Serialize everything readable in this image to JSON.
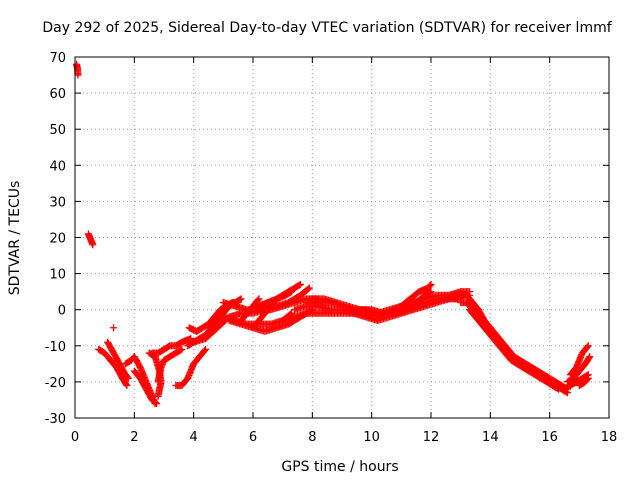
{
  "chart_data": {
    "type": "scatter",
    "title": "Day 292 of 2025, Sidereal Day-to-day VTEC variation (SDTVAR) for receiver lmmf",
    "xlabel": "GPS time / hours",
    "ylabel": "SDTVAR / TECUs",
    "xlim": [
      0,
      18
    ],
    "ylim": [
      -30,
      70
    ],
    "xticks": [
      0,
      2,
      4,
      6,
      8,
      10,
      12,
      14,
      16,
      18
    ],
    "yticks": [
      -30,
      -20,
      -10,
      0,
      10,
      20,
      30,
      40,
      50,
      60,
      70
    ],
    "grid": true,
    "marker": "+",
    "colors": {
      "series": "#ff0000",
      "grid": "#a0a0a0",
      "axis": "#000000"
    },
    "series": [
      {
        "name": "SDTVAR",
        "tracks": [
          [
            [
              0.05,
              68
            ],
            [
              0.08,
              67
            ],
            [
              0.1,
              65
            ]
          ],
          [
            [
              0.45,
              21
            ],
            [
              0.5,
              20
            ],
            [
              0.55,
              19
            ],
            [
              0.6,
              18
            ]
          ],
          [
            [
              0.8,
              -11
            ],
            [
              1.0,
              -12
            ],
            [
              1.2,
              -14
            ],
            [
              1.4,
              -16
            ],
            [
              1.6,
              -19
            ],
            [
              1.75,
              -21
            ]
          ],
          [
            [
              1.1,
              -9
            ],
            [
              1.3,
              -12
            ],
            [
              1.5,
              -15
            ],
            [
              1.7,
              -18
            ],
            [
              1.8,
              -19
            ]
          ],
          [
            [
              1.3,
              -5
            ]
          ],
          [
            [
              1.7,
              -15
            ],
            [
              1.9,
              -14
            ],
            [
              2.0,
              -13
            ],
            [
              2.2,
              -16
            ],
            [
              2.4,
              -20
            ],
            [
              2.6,
              -24
            ],
            [
              2.7,
              -26
            ]
          ],
          [
            [
              2.0,
              -17
            ],
            [
              2.2,
              -19
            ],
            [
              2.4,
              -22
            ],
            [
              2.6,
              -25
            ],
            [
              2.75,
              -26
            ]
          ],
          [
            [
              2.5,
              -12
            ],
            [
              2.7,
              -13
            ],
            [
              2.85,
              -17
            ],
            [
              2.9,
              -20
            ],
            [
              2.85,
              -22
            ],
            [
              2.8,
              -24
            ]
          ],
          [
            [
              2.8,
              -20
            ],
            [
              2.85,
              -18
            ],
            [
              2.9,
              -16
            ],
            [
              3.0,
              -14
            ],
            [
              3.2,
              -13
            ],
            [
              3.4,
              -12
            ],
            [
              3.6,
              -11
            ]
          ],
          [
            [
              2.6,
              -12
            ],
            [
              2.8,
              -12
            ],
            [
              3.0,
              -11
            ],
            [
              3.2,
              -10
            ],
            [
              3.4,
              -10
            ],
            [
              3.6,
              -9
            ],
            [
              3.9,
              -8
            ]
          ],
          [
            [
              3.4,
              -21
            ],
            [
              3.6,
              -21
            ],
            [
              3.8,
              -19
            ],
            [
              3.9,
              -17
            ],
            [
              4.0,
              -15
            ],
            [
              4.2,
              -13
            ],
            [
              4.4,
              -11
            ]
          ],
          [
            [
              3.8,
              -10
            ],
            [
              4.0,
              -9
            ],
            [
              4.2,
              -8
            ],
            [
              4.4,
              -7
            ],
            [
              4.6,
              -5
            ],
            [
              4.8,
              -3
            ],
            [
              5.0,
              -1
            ],
            [
              5.2,
              1
            ],
            [
              5.4,
              2
            ],
            [
              5.6,
              3
            ]
          ],
          [
            [
              3.85,
              -5
            ],
            [
              4.1,
              -6
            ],
            [
              4.3,
              -5
            ],
            [
              4.5,
              -4
            ],
            [
              4.7,
              -2
            ],
            [
              4.9,
              0
            ],
            [
              5.1,
              1
            ],
            [
              5.3,
              2
            ],
            [
              5.5,
              2
            ]
          ],
          [
            [
              4.0,
              -9
            ],
            [
              4.4,
              -8
            ],
            [
              4.8,
              -5
            ],
            [
              5.2,
              -2
            ],
            [
              5.6,
              -1
            ],
            [
              6.0,
              -1
            ],
            [
              6.4,
              0
            ],
            [
              6.8,
              1
            ],
            [
              7.2,
              2
            ],
            [
              7.6,
              4
            ],
            [
              7.9,
              6
            ]
          ],
          [
            [
              4.6,
              -3
            ],
            [
              5.0,
              -2
            ],
            [
              5.4,
              -3
            ],
            [
              5.8,
              -4
            ],
            [
              6.2,
              -4
            ],
            [
              6.6,
              -4
            ],
            [
              7.0,
              -3
            ],
            [
              7.3,
              -1
            ]
          ],
          [
            [
              5.2,
              -3
            ],
            [
              5.6,
              -4
            ],
            [
              6.0,
              -5
            ],
            [
              6.4,
              -6
            ],
            [
              6.8,
              -5
            ],
            [
              7.2,
              -4
            ],
            [
              7.6,
              -2
            ],
            [
              8.0,
              0
            ]
          ],
          [
            [
              5.0,
              2
            ],
            [
              5.4,
              1
            ],
            [
              5.8,
              0
            ],
            [
              6.2,
              0
            ],
            [
              6.6,
              0
            ],
            [
              7.0,
              1
            ],
            [
              7.4,
              2
            ],
            [
              7.8,
              3
            ],
            [
              8.2,
              3
            ]
          ],
          [
            [
              5.6,
              -3
            ],
            [
              5.8,
              -1
            ],
            [
              6.0,
              1
            ],
            [
              6.2,
              3
            ]
          ],
          [
            [
              6.0,
              -5
            ],
            [
              6.2,
              -3
            ],
            [
              6.4,
              -1
            ],
            [
              6.6,
              1
            ],
            [
              6.8,
              3
            ],
            [
              7.0,
              4
            ],
            [
              7.2,
              5
            ],
            [
              7.4,
              6
            ],
            [
              7.6,
              7
            ]
          ],
          [
            [
              5.9,
              0
            ],
            [
              6.2,
              1
            ],
            [
              6.5,
              2
            ],
            [
              6.8,
              3
            ],
            [
              7.1,
              4
            ],
            [
              7.3,
              5
            ]
          ],
          [
            [
              7.0,
              -3
            ],
            [
              7.4,
              -2
            ],
            [
              7.8,
              -1
            ],
            [
              8.2,
              -1
            ],
            [
              8.6,
              -1
            ],
            [
              9.0,
              -1
            ],
            [
              9.4,
              -1
            ],
            [
              9.8,
              -2
            ],
            [
              10.2,
              -3
            ],
            [
              10.6,
              -2
            ],
            [
              11.0,
              -1
            ],
            [
              11.4,
              0
            ],
            [
              11.8,
              1
            ],
            [
              12.2,
              2
            ],
            [
              12.6,
              3
            ],
            [
              13.0,
              3
            ]
          ],
          [
            [
              7.4,
              0
            ],
            [
              7.8,
              1
            ],
            [
              8.2,
              1
            ],
            [
              8.6,
              0
            ],
            [
              9.0,
              0
            ],
            [
              9.4,
              -1
            ],
            [
              9.8,
              -1
            ],
            [
              10.2,
              -2
            ],
            [
              10.6,
              -1
            ],
            [
              11.0,
              0
            ],
            [
              11.4,
              1
            ],
            [
              11.8,
              2
            ],
            [
              12.2,
              3
            ],
            [
              12.6,
              3
            ],
            [
              13.0,
              4
            ],
            [
              13.3,
              4
            ]
          ],
          [
            [
              7.8,
              2
            ],
            [
              8.2,
              2
            ],
            [
              8.6,
              2
            ],
            [
              9.0,
              1
            ],
            [
              9.4,
              0
            ],
            [
              9.8,
              0
            ],
            [
              10.2,
              -1
            ],
            [
              10.6,
              0
            ],
            [
              11.0,
              1
            ],
            [
              11.4,
              2
            ],
            [
              11.8,
              3
            ],
            [
              12.2,
              4
            ],
            [
              12.6,
              4
            ],
            [
              13.0,
              5
            ],
            [
              13.3,
              5
            ]
          ],
          [
            [
              8.0,
              3
            ],
            [
              8.4,
              3
            ],
            [
              8.8,
              2
            ],
            [
              9.2,
              1
            ],
            [
              9.6,
              0
            ],
            [
              10.0,
              0
            ],
            [
              10.4,
              -1
            ],
            [
              10.8,
              0
            ],
            [
              11.2,
              1
            ],
            [
              11.6,
              2
            ]
          ],
          [
            [
              11.0,
              1
            ],
            [
              11.3,
              3
            ],
            [
              11.6,
              5
            ],
            [
              11.9,
              6
            ],
            [
              12.0,
              7
            ]
          ],
          [
            [
              11.2,
              0
            ],
            [
              11.5,
              2
            ],
            [
              11.8,
              4
            ],
            [
              12.0,
              5
            ]
          ],
          [
            [
              12.8,
              3
            ],
            [
              13.0,
              4
            ],
            [
              13.2,
              4
            ],
            [
              13.4,
              2
            ],
            [
              13.6,
              0
            ],
            [
              13.8,
              -3
            ],
            [
              14.0,
              -5
            ],
            [
              14.2,
              -7
            ],
            [
              14.4,
              -9
            ],
            [
              14.6,
              -11
            ],
            [
              14.8,
              -13
            ],
            [
              15.0,
              -14
            ],
            [
              15.2,
              -15
            ],
            [
              15.4,
              -16
            ],
            [
              15.6,
              -17
            ],
            [
              15.8,
              -18
            ],
            [
              16.0,
              -19
            ],
            [
              16.2,
              -20
            ],
            [
              16.4,
              -21
            ],
            [
              16.6,
              -22
            ]
          ],
          [
            [
              13.0,
              2
            ],
            [
              13.2,
              2
            ],
            [
              13.4,
              0
            ],
            [
              13.6,
              -2
            ],
            [
              13.8,
              -4
            ],
            [
              14.0,
              -6
            ],
            [
              14.2,
              -8
            ],
            [
              14.4,
              -10
            ],
            [
              14.6,
              -12
            ],
            [
              14.8,
              -14
            ],
            [
              15.0,
              -15
            ],
            [
              15.2,
              -16
            ],
            [
              15.4,
              -17
            ],
            [
              15.6,
              -18
            ],
            [
              15.8,
              -19
            ],
            [
              16.0,
              -20
            ],
            [
              16.2,
              -21
            ],
            [
              16.4,
              -22
            ],
            [
              16.6,
              -23
            ]
          ],
          [
            [
              13.3,
              0
            ],
            [
              13.5,
              -2
            ],
            [
              13.7,
              -4
            ],
            [
              13.9,
              -6
            ],
            [
              14.1,
              -8
            ],
            [
              14.3,
              -10
            ],
            [
              14.5,
              -12
            ],
            [
              14.7,
              -14
            ],
            [
              14.9,
              -15
            ],
            [
              15.1,
              -16
            ],
            [
              15.3,
              -17
            ],
            [
              15.5,
              -18
            ],
            [
              15.7,
              -19
            ],
            [
              15.9,
              -20
            ],
            [
              16.1,
              -21
            ],
            [
              16.3,
              -22
            ]
          ],
          [
            [
              16.5,
              -22
            ],
            [
              16.7,
              -21
            ],
            [
              16.9,
              -20
            ],
            [
              17.1,
              -19
            ],
            [
              17.3,
              -18
            ]
          ],
          [
            [
              16.6,
              -20
            ],
            [
              16.8,
              -19
            ],
            [
              17.0,
              -17
            ],
            [
              17.2,
              -15
            ],
            [
              17.35,
              -13
            ]
          ],
          [
            [
              16.7,
              -18
            ],
            [
              16.9,
              -16
            ],
            [
              17.0,
              -14
            ],
            [
              17.1,
              -12
            ],
            [
              17.2,
              -11
            ],
            [
              17.3,
              -10
            ]
          ],
          [
            [
              17.0,
              -21
            ],
            [
              17.2,
              -20
            ],
            [
              17.3,
              -19
            ]
          ]
        ]
      }
    ]
  }
}
